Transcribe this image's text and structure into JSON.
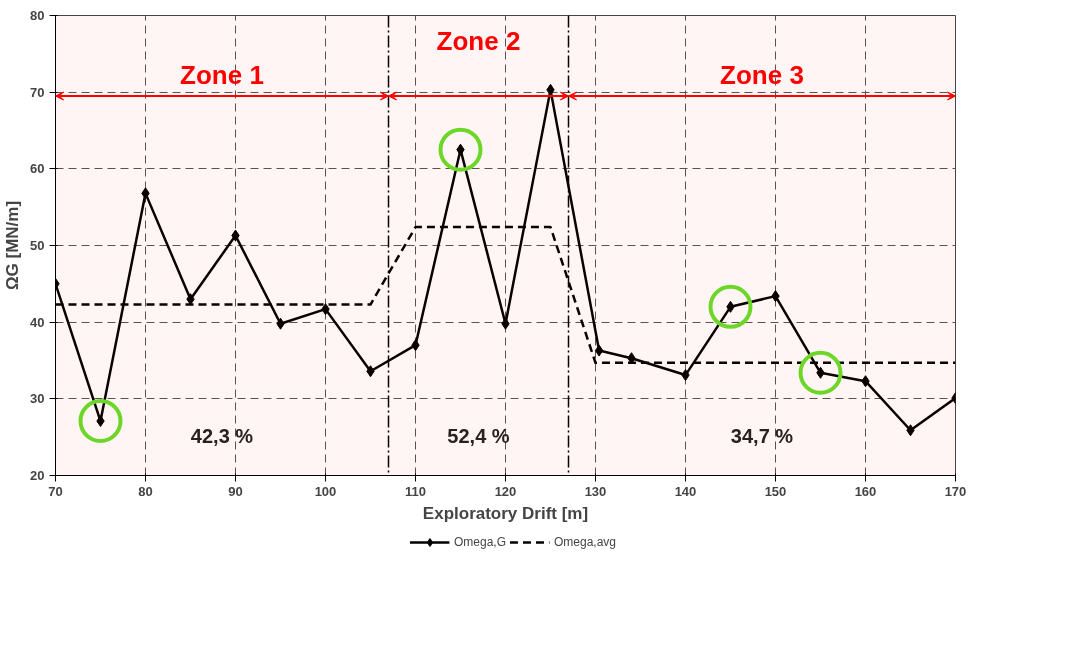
{
  "chart_data": {
    "type": "line",
    "xlabel": "Exploratory Drift [m]",
    "ylabel": "ΩG [MN/m]",
    "xlim": [
      70,
      170
    ],
    "xticks": [
      70,
      80,
      90,
      100,
      110,
      120,
      130,
      140,
      150,
      160,
      170
    ],
    "ylim": [
      20,
      80
    ],
    "yticks": [
      20,
      30,
      40,
      50,
      60,
      70,
      80
    ],
    "grid": true,
    "legend": "bottom",
    "series": [
      {
        "name": "Omega,G",
        "color": "#000000",
        "marker": "diamond",
        "line_style": "solid",
        "x": [
          70,
          75,
          80,
          85,
          90,
          95,
          100,
          105,
          110,
          115,
          120,
          125,
          130.4,
          134,
          140,
          145,
          150,
          155,
          160,
          165,
          170
        ],
        "values": [
          45,
          27.1,
          56.8,
          43,
          51.3,
          39.8,
          41.7,
          33.6,
          37,
          62.5,
          39.8,
          70.3,
          36.3,
          35.3,
          33.1,
          42,
          43.4,
          33.4,
          32.3,
          25.9,
          30.1
        ]
      },
      {
        "name": "Omega,avg",
        "color": "#000000",
        "marker": "none",
        "line_style": "dashed",
        "x": [
          70,
          105,
          110,
          125,
          130,
          170
        ],
        "values": [
          42.3,
          42.3,
          52.4,
          52.4,
          34.7,
          34.7
        ]
      },
      {
        "type": "scatter",
        "color": "#66e02a",
        "marker": "circle",
        "x": [
          75,
          115,
          145,
          155
        ],
        "values": [
          27.1,
          62.5,
          42,
          33.4
        ]
      }
    ],
    "ref_lines": [
      {
        "axis": "x",
        "value": 107,
        "color": "#000000",
        "line_style": "dashdot"
      },
      {
        "axis": "x",
        "value": 127,
        "color": "#000000",
        "line_style": "dashdot"
      }
    ],
    "bands": [
      {
        "axis": "x",
        "from": 70,
        "to": 107,
        "label": "Zone 1",
        "color": "#ff0000"
      },
      {
        "axis": "x",
        "from": 107,
        "to": 127,
        "label": "Zone 2",
        "color": "#ff0000"
      },
      {
        "axis": "x",
        "from": 127,
        "to": 170,
        "label": "Zone 3",
        "color": "#ff0000"
      }
    ],
    "annotations": [
      "42,3 %",
      "52,4 %",
      "34,7 %"
    ]
  }
}
